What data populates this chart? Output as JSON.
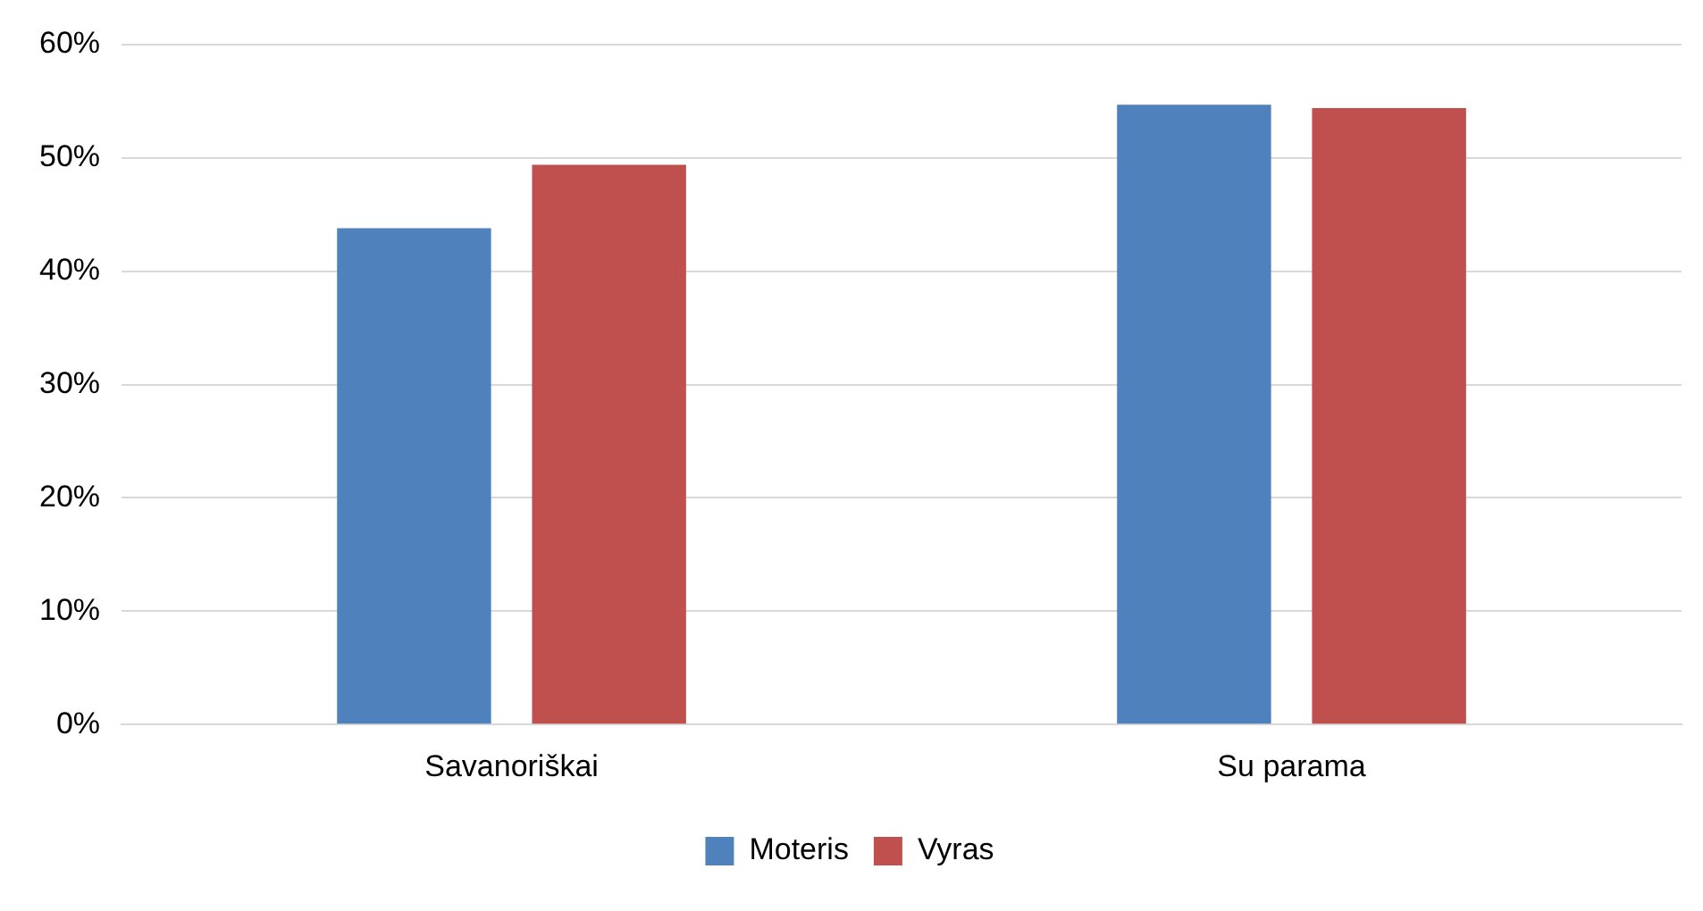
{
  "chart_data": {
    "type": "bar",
    "categories": [
      "Savanoriškai",
      "Su parama"
    ],
    "series": [
      {
        "name": "Moteris",
        "color": "#4f81bd",
        "values": [
          43.8,
          54.7
        ]
      },
      {
        "name": "Vyras",
        "color": "#c0504d",
        "values": [
          49.4,
          54.4
        ]
      }
    ],
    "ylim": [
      0,
      60
    ],
    "yticks": [
      {
        "value": 0,
        "label": "0%"
      },
      {
        "value": 10,
        "label": "10%"
      },
      {
        "value": 20,
        "label": "20%"
      },
      {
        "value": 30,
        "label": "30%"
      },
      {
        "value": 40,
        "label": "40%"
      },
      {
        "value": 50,
        "label": "50%"
      },
      {
        "value": 60,
        "label": "60%"
      }
    ],
    "grid": "y",
    "legend": "bottom"
  }
}
